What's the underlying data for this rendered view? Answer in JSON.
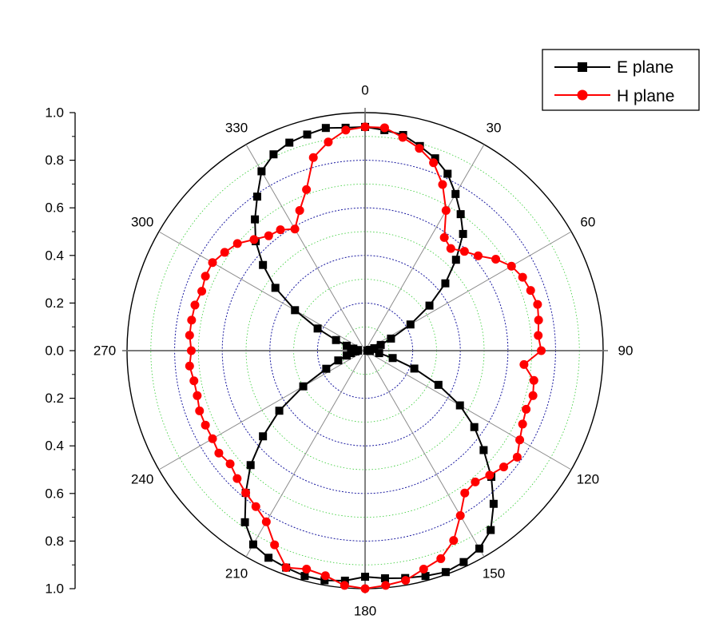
{
  "chart_data": {
    "type": "line",
    "subtype": "polar",
    "title": "",
    "radial_axis": {
      "ticks": [
        "1.0",
        "0.8",
        "0.6",
        "0.4",
        "0.2",
        "0.0",
        "0.2",
        "0.4",
        "0.6",
        "0.8",
        "1.0"
      ],
      "range": [
        0,
        1.0
      ]
    },
    "angle_axis": {
      "labels": [
        "0",
        "30",
        "60",
        "90",
        "120",
        "150",
        "180",
        "210",
        "240",
        "270",
        "300",
        "330"
      ],
      "direction": "clockwise",
      "zero_at": "top"
    },
    "legend": {
      "placement": "top-right"
    },
    "grid": true,
    "series": [
      {
        "name": "E plane",
        "color": "#000000",
        "marker": "square",
        "angle": [
          0,
          5,
          10,
          15,
          20,
          25,
          30,
          35,
          40,
          45,
          50,
          55,
          60,
          65,
          70,
          75,
          80,
          85,
          90,
          95,
          100,
          105,
          110,
          115,
          120,
          125,
          130,
          135,
          140,
          145,
          150,
          155,
          160,
          165,
          170,
          175,
          180,
          185,
          190,
          195,
          200,
          205,
          210,
          215,
          220,
          225,
          230,
          235,
          240,
          245,
          250,
          255,
          260,
          265,
          270,
          275,
          280,
          285,
          290,
          295,
          300,
          305,
          310,
          315,
          320,
          325,
          330,
          335,
          340,
          345,
          350,
          355
        ],
        "r": [
          0.94,
          0.93,
          0.92,
          0.89,
          0.86,
          0.82,
          0.76,
          0.7,
          0.64,
          0.54,
          0.44,
          0.33,
          0.22,
          0.12,
          0.07,
          0.04,
          0.02,
          0.01,
          0.01,
          0.02,
          0.06,
          0.12,
          0.22,
          0.34,
          0.46,
          0.56,
          0.65,
          0.75,
          0.84,
          0.92,
          0.96,
          0.98,
          0.99,
          0.98,
          0.97,
          0.96,
          0.95,
          0.97,
          0.98,
          0.98,
          0.97,
          0.96,
          0.94,
          0.88,
          0.78,
          0.68,
          0.56,
          0.44,
          0.3,
          0.18,
          0.12,
          0.08,
          0.06,
          0.04,
          0.03,
          0.03,
          0.05,
          0.08,
          0.13,
          0.22,
          0.34,
          0.46,
          0.56,
          0.65,
          0.72,
          0.79,
          0.87,
          0.91,
          0.93,
          0.94,
          0.95,
          0.94
        ]
      },
      {
        "name": "H plane",
        "color": "#ff0000",
        "marker": "circle",
        "angle": [
          0,
          5,
          10,
          15,
          20,
          25,
          30,
          35,
          40,
          45,
          50,
          55,
          60,
          65,
          70,
          75,
          80,
          85,
          90,
          95,
          100,
          105,
          110,
          115,
          120,
          125,
          130,
          135,
          140,
          145,
          150,
          155,
          160,
          165,
          170,
          175,
          180,
          185,
          190,
          195,
          200,
          205,
          210,
          215,
          220,
          225,
          230,
          235,
          240,
          245,
          250,
          255,
          260,
          265,
          270,
          275,
          280,
          285,
          290,
          295,
          300,
          305,
          310,
          315,
          320,
          325,
          330,
          335,
          340,
          345,
          350,
          355
        ],
        "r": [
          0.94,
          0.94,
          0.91,
          0.88,
          0.84,
          0.77,
          0.68,
          0.58,
          0.56,
          0.59,
          0.62,
          0.67,
          0.71,
          0.73,
          0.74,
          0.75,
          0.74,
          0.73,
          0.74,
          0.67,
          0.72,
          0.73,
          0.72,
          0.73,
          0.75,
          0.78,
          0.76,
          0.74,
          0.72,
          0.73,
          0.8,
          0.88,
          0.93,
          0.95,
          0.98,
          0.99,
          1.0,
          0.99,
          0.96,
          0.95,
          0.97,
          0.9,
          0.83,
          0.8,
          0.78,
          0.76,
          0.74,
          0.75,
          0.74,
          0.74,
          0.74,
          0.73,
          0.73,
          0.74,
          0.73,
          0.74,
          0.74,
          0.74,
          0.73,
          0.74,
          0.74,
          0.72,
          0.7,
          0.66,
          0.63,
          0.62,
          0.59,
          0.65,
          0.72,
          0.84,
          0.89,
          0.93
        ]
      }
    ]
  }
}
